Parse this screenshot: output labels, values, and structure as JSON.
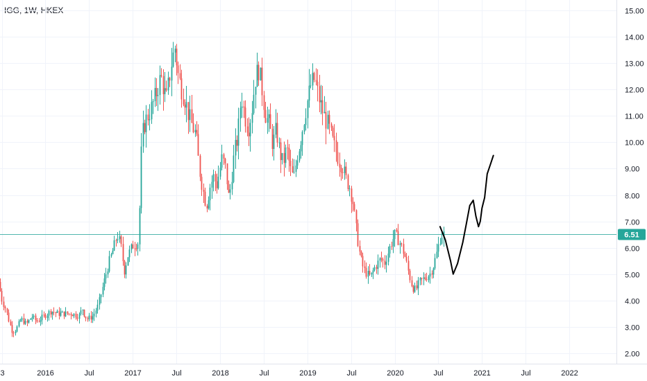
{
  "header": {
    "symbol": "IGG, 1W, HKEX"
  },
  "colors": {
    "up": "#26a69a",
    "down": "#ef5350",
    "price_line": "#26a69a",
    "grid": "#f0f3fa",
    "drawing": "#000000",
    "axis_text": "#131722"
  },
  "chart_data": {
    "type": "candlestick",
    "symbol": "IGG",
    "interval": "1W",
    "exchange": "HKEX",
    "current_price": 6.51,
    "current_price_label": "6.51",
    "ylim": [
      1.6,
      15.4
    ],
    "xlim": [
      2015.48,
      2022.54
    ],
    "y_ticks": [
      {
        "value": 2,
        "label": "2.00"
      },
      {
        "value": 3,
        "label": "3.00"
      },
      {
        "value": 4,
        "label": "4.00"
      },
      {
        "value": 5,
        "label": "5.00"
      },
      {
        "value": 6,
        "label": "6.00"
      },
      {
        "value": 7,
        "label": "7.00"
      },
      {
        "value": 8,
        "label": "8.00"
      },
      {
        "value": 9,
        "label": "9.00"
      },
      {
        "value": 10,
        "label": "10.00"
      },
      {
        "value": 11,
        "label": "11.00"
      },
      {
        "value": 12,
        "label": "12.00"
      },
      {
        "value": 13,
        "label": "13.00"
      },
      {
        "value": 14,
        "label": "14.00"
      },
      {
        "value": 15,
        "label": "15.00"
      }
    ],
    "x_ticks": [
      {
        "t": 2015.5,
        "label": "3"
      },
      {
        "t": 2016.0,
        "label": "2016"
      },
      {
        "t": 2016.5,
        "label": "Jul"
      },
      {
        "t": 2017.0,
        "label": "2017"
      },
      {
        "t": 2017.5,
        "label": "Jul"
      },
      {
        "t": 2018.0,
        "label": "2018"
      },
      {
        "t": 2018.5,
        "label": "Jul"
      },
      {
        "t": 2019.0,
        "label": "2019"
      },
      {
        "t": 2019.5,
        "label": "Jul"
      },
      {
        "t": 2020.0,
        "label": "2020"
      },
      {
        "t": 2020.5,
        "label": "Jul"
      },
      {
        "t": 2021.0,
        "label": "2021"
      },
      {
        "t": 2021.5,
        "label": "Jul"
      },
      {
        "t": 2022.0,
        "label": "2022"
      }
    ],
    "price_path": [
      [
        2015.48,
        4.7
      ],
      [
        2015.52,
        4.0
      ],
      [
        2015.56,
        3.7
      ],
      [
        2015.6,
        3.2
      ],
      [
        2015.64,
        2.8
      ],
      [
        2015.68,
        2.9
      ],
      [
        2015.74,
        3.3
      ],
      [
        2015.8,
        3.1
      ],
      [
        2015.86,
        3.4
      ],
      [
        2015.92,
        3.2
      ],
      [
        2016.0,
        3.4
      ],
      [
        2016.08,
        3.6
      ],
      [
        2016.16,
        3.5
      ],
      [
        2016.24,
        3.5
      ],
      [
        2016.32,
        3.5
      ],
      [
        2016.4,
        3.4
      ],
      [
        2016.44,
        3.7
      ],
      [
        2016.47,
        3.4
      ],
      [
        2016.5,
        3.3
      ],
      [
        2016.56,
        3.4
      ],
      [
        2016.62,
        3.8
      ],
      [
        2016.68,
        4.6
      ],
      [
        2016.74,
        5.4
      ],
      [
        2016.8,
        6.0
      ],
      [
        2016.84,
        6.5
      ],
      [
        2016.88,
        6.1
      ],
      [
        2016.92,
        5.1
      ],
      [
        2016.96,
        5.7
      ],
      [
        2017.02,
        6.1
      ],
      [
        2017.08,
        6.2
      ],
      [
        2017.1,
        7.9
      ],
      [
        2017.12,
        10.2
      ],
      [
        2017.16,
        10.8
      ],
      [
        2017.22,
        11.2
      ],
      [
        2017.28,
        11.8
      ],
      [
        2017.34,
        12.5
      ],
      [
        2017.4,
        11.6
      ],
      [
        2017.46,
        13.0
      ],
      [
        2017.5,
        13.6
      ],
      [
        2017.54,
        12.5
      ],
      [
        2017.58,
        12.0
      ],
      [
        2017.62,
        11.6
      ],
      [
        2017.66,
        11.0
      ],
      [
        2017.7,
        10.6
      ],
      [
        2017.74,
        10.3
      ],
      [
        2017.78,
        9.0
      ],
      [
        2017.82,
        8.2
      ],
      [
        2017.86,
        7.6
      ],
      [
        2017.9,
        8.3
      ],
      [
        2017.94,
        8.7
      ],
      [
        2017.98,
        8.4
      ],
      [
        2018.04,
        9.4
      ],
      [
        2018.08,
        9.0
      ],
      [
        2018.12,
        7.8
      ],
      [
        2018.18,
        9.6
      ],
      [
        2018.22,
        10.2
      ],
      [
        2018.26,
        11.8
      ],
      [
        2018.3,
        11.0
      ],
      [
        2018.34,
        10.5
      ],
      [
        2018.38,
        11.2
      ],
      [
        2018.42,
        12.4
      ],
      [
        2018.46,
        12.8
      ],
      [
        2018.5,
        12.0
      ],
      [
        2018.54,
        11.0
      ],
      [
        2018.58,
        10.7
      ],
      [
        2018.62,
        9.9
      ],
      [
        2018.66,
        10.5
      ],
      [
        2018.7,
        9.6
      ],
      [
        2018.74,
        9.2
      ],
      [
        2018.78,
        9.8
      ],
      [
        2018.82,
        9.0
      ],
      [
        2018.86,
        8.6
      ],
      [
        2018.9,
        9.5
      ],
      [
        2018.94,
        10.1
      ],
      [
        2018.98,
        10.9
      ],
      [
        2019.02,
        11.6
      ],
      [
        2019.06,
        12.2
      ],
      [
        2019.1,
        12.4
      ],
      [
        2019.14,
        11.8
      ],
      [
        2019.18,
        11.3
      ],
      [
        2019.22,
        10.9
      ],
      [
        2019.26,
        10.6
      ],
      [
        2019.3,
        10.1
      ],
      [
        2019.34,
        9.7
      ],
      [
        2019.38,
        9.3
      ],
      [
        2019.42,
        9.1
      ],
      [
        2019.46,
        8.6
      ],
      [
        2019.5,
        8.3
      ],
      [
        2019.54,
        7.7
      ],
      [
        2019.58,
        6.6
      ],
      [
        2019.62,
        5.7
      ],
      [
        2019.66,
        5.2
      ],
      [
        2019.7,
        5.0
      ],
      [
        2019.74,
        4.9
      ],
      [
        2019.78,
        5.2
      ],
      [
        2019.82,
        5.4
      ],
      [
        2019.86,
        5.6
      ],
      [
        2019.9,
        5.4
      ],
      [
        2019.94,
        5.8
      ],
      [
        2019.98,
        6.2
      ],
      [
        2020.02,
        6.5
      ],
      [
        2020.06,
        6.3
      ],
      [
        2020.1,
        6.0
      ],
      [
        2020.14,
        5.6
      ],
      [
        2020.18,
        5.0
      ],
      [
        2020.22,
        4.5
      ],
      [
        2020.26,
        4.4
      ],
      [
        2020.3,
        4.7
      ],
      [
        2020.34,
        4.8
      ],
      [
        2020.38,
        4.9
      ],
      [
        2020.42,
        5.0
      ],
      [
        2020.46,
        5.3
      ],
      [
        2020.5,
        5.8
      ],
      [
        2020.54,
        6.4
      ],
      [
        2020.56,
        6.51
      ]
    ],
    "projection_path": [
      [
        2020.52,
        6.8
      ],
      [
        2020.58,
        6.3
      ],
      [
        2020.64,
        5.5
      ],
      [
        2020.67,
        5.0
      ],
      [
        2020.72,
        5.4
      ],
      [
        2020.78,
        6.2
      ],
      [
        2020.82,
        6.9
      ],
      [
        2020.86,
        7.6
      ],
      [
        2020.9,
        7.8
      ],
      [
        2020.93,
        7.2
      ],
      [
        2020.96,
        6.8
      ],
      [
        2020.98,
        7.0
      ],
      [
        2021.0,
        7.5
      ],
      [
        2021.03,
        7.9
      ],
      [
        2021.06,
        8.8
      ],
      [
        2021.1,
        9.2
      ],
      [
        2021.13,
        9.5
      ]
    ]
  }
}
